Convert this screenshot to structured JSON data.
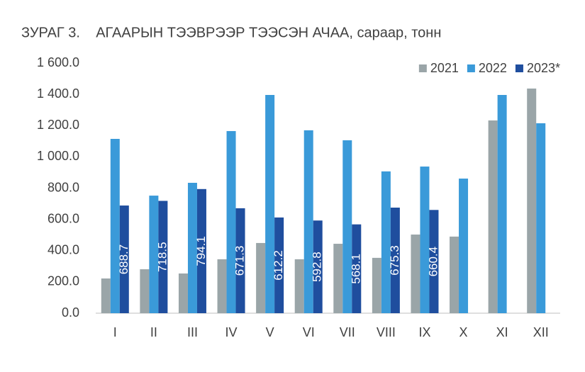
{
  "chart_data": {
    "type": "bar",
    "title": "ЗУРАГ 3.    АГААРЫН ТЭЭВРЭЭР ТЭЭСЭН АЧАА, сараар, тонн",
    "categories": [
      "I",
      "II",
      "III",
      "IV",
      "V",
      "VI",
      "VII",
      "VIII",
      "IX",
      "X",
      "XI",
      "XII"
    ],
    "series": [
      {
        "name": "2021",
        "color": "#9aa5a8",
        "values": [
          222,
          281,
          254,
          345,
          449,
          345,
          444,
          354,
          503,
          490,
          1233,
          1437
        ]
      },
      {
        "name": "2022",
        "color": "#3a9ad9",
        "values": [
          1115,
          752,
          834,
          1165,
          1396,
          1170,
          1106,
          907,
          938,
          861,
          1396,
          1215
        ]
      },
      {
        "name": "2023*",
        "color": "#1f4e9e",
        "values": [
          688.7,
          718.5,
          794.1,
          671.3,
          612.2,
          592.8,
          568.1,
          675.3,
          660.4,
          null,
          null,
          null
        ]
      }
    ],
    "ylim": [
      0,
      1600
    ],
    "yticks": [
      {
        "value": 0,
        "label": "0.0"
      },
      {
        "value": 200,
        "label": "200.0"
      },
      {
        "value": 400,
        "label": "400.0"
      },
      {
        "value": 600,
        "label": "600.0"
      },
      {
        "value": 800,
        "label": "800.0"
      },
      {
        "value": 1000,
        "label": "1 000.0"
      },
      {
        "value": 1200,
        "label": "1 200.0"
      },
      {
        "value": 1400,
        "label": "1 400.0"
      },
      {
        "value": 1600,
        "label": "1 600.0"
      }
    ],
    "grid": false,
    "legend": "top-right",
    "data_labels_series": 2
  }
}
